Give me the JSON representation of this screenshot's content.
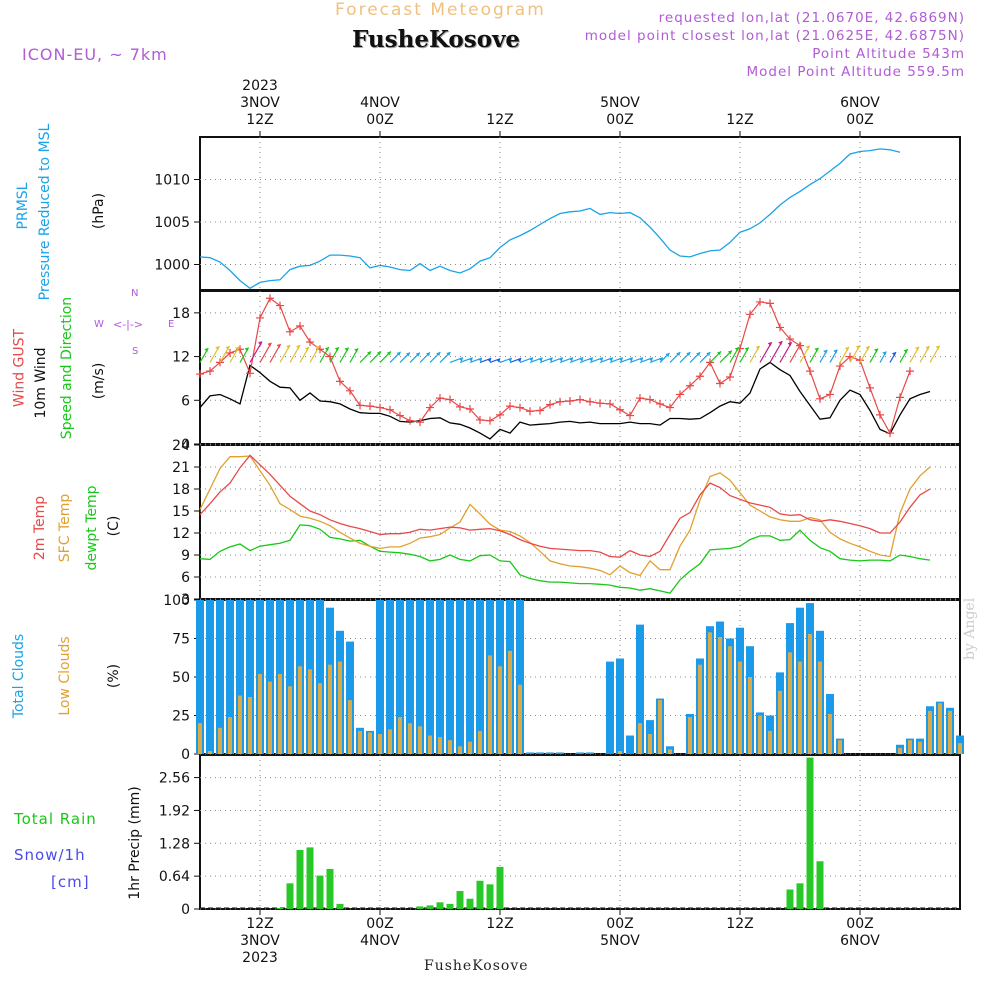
{
  "header": {
    "title": "Forecast Meteogram",
    "location": "FusheKosove",
    "model": "ICON-EU, ~ 7km",
    "requested": "requested lon,lat (21.0670E, 42.6869N)",
    "closest": "model point closest lon,lat (21.0625E, 42.6875N)",
    "point_alt": "Point Altitude 543m",
    "model_alt": "Model Point Altitude 559.5m"
  },
  "time_axis": {
    "top_labels": [
      {
        "line1": "2023",
        "line2": "3NOV",
        "line3": "12Z"
      },
      {
        "line1": "",
        "line2": "4NOV",
        "line3": "00Z"
      },
      {
        "line1": "",
        "line2": "",
        "line3": "12Z"
      },
      {
        "line1": "",
        "line2": "5NOV",
        "line3": "00Z"
      },
      {
        "line1": "",
        "line2": "",
        "line3": "12Z"
      },
      {
        "line1": "",
        "line2": "6NOV",
        "line3": "00Z"
      }
    ],
    "bottom_labels": [
      {
        "line1": "12Z",
        "line2": "3NOV",
        "line3": "2023"
      },
      {
        "line1": "00Z",
        "line2": "4NOV",
        "line3": ""
      },
      {
        "line1": "12Z",
        "line2": "",
        "line3": ""
      },
      {
        "line1": "00Z",
        "line2": "5NOV",
        "line3": ""
      },
      {
        "line1": "12Z",
        "line2": "",
        "line3": ""
      },
      {
        "line1": "00Z",
        "line2": "6NOV",
        "line3": ""
      }
    ]
  },
  "panel_labels": {
    "prmsl": {
      "a": "PRMSL",
      "b": "Pressure Reduced to MSL",
      "unit": "(hPa)"
    },
    "wind": {
      "a": "Wind GUST",
      "b": "10m Wind",
      "c": "Speed and Direction",
      "unit": "(m/s)"
    },
    "compass": {
      "n": "N",
      "s": "S",
      "w": "W",
      "e": "E",
      "h": "<-|->"
    },
    "temp": {
      "a": "2m Temp",
      "b": "SFC Temp",
      "c": "dewpt Temp",
      "unit": "(C)"
    },
    "clouds": {
      "a": "Total Clouds",
      "b": "Low Clouds",
      "unit": "(%)"
    },
    "precip": {
      "a": "Total  Rain",
      "b": "Snow/1h",
      "c": "[cm]",
      "unit": "1hr Precip (mm)"
    }
  },
  "watermark": "by Angel",
  "bottom_location": "FusheKosove",
  "colors": {
    "pressure": "#1aa3e8",
    "gust": "#e84848",
    "wind": "#000000",
    "t2m": "#e84848",
    "tsfc": "#e0a030",
    "dewpt": "#18c818",
    "total_cloud": "#1a9ae8",
    "low_cloud": "#d8aa4a",
    "rain": "#28c828",
    "purple": "#b15bd6",
    "green_label": "#18c818",
    "blue_label": "#1aa3e8"
  },
  "chart_data": [
    {
      "type": "line",
      "name": "PRMSL",
      "x_hours_start": 6,
      "x_step_hours": 1,
      "xlim": [
        6,
        82
      ],
      "ylim": [
        997,
        1015
      ],
      "yticks": [
        1000,
        1005,
        1010
      ],
      "values": [
        1000.9,
        1000.8,
        1000.3,
        999.3,
        998.1,
        997.2,
        997.9,
        998.1,
        998.2,
        999.4,
        999.8,
        999.9,
        1000.4,
        1001.1,
        1001.1,
        1001.0,
        1000.8,
        999.6,
        999.9,
        999.7,
        999.4,
        999.3,
        1000.1,
        999.3,
        999.8,
        999.3,
        999.0,
        999.5,
        1000.4,
        1000.8,
        1002.0,
        1002.9,
        1003.4,
        1004.0,
        1004.7,
        1005.4,
        1006.0,
        1006.2,
        1006.3,
        1006.6,
        1005.9,
        1006.1,
        1006.0,
        1006.1,
        1005.5,
        1004.4,
        1003.1,
        1001.7,
        1001.0,
        1000.9,
        1001.3,
        1001.6,
        1001.7,
        1002.6,
        1003.8,
        1004.2,
        1004.9,
        1005.9,
        1007.0,
        1007.9,
        1008.6,
        1009.4,
        1010.1,
        1011.0,
        1011.9,
        1013.0,
        1013.3,
        1013.4,
        1013.6,
        1013.5,
        1013.2
      ]
    },
    {
      "type": "line",
      "name": "Wind speed and gust",
      "x_hours_start": 6,
      "x_step_hours": 1,
      "xlim": [
        6,
        82
      ],
      "ylim": [
        0,
        21
      ],
      "yticks": [
        0,
        6,
        12,
        18
      ],
      "series": [
        {
          "name": "10m Wind",
          "values": [
            5,
            6.6,
            6.8,
            6.2,
            5.5,
            10.8,
            9.8,
            8.6,
            7.8,
            7.7,
            6,
            7,
            5.9,
            5.8,
            5.5,
            4.8,
            4.3,
            4.2,
            4.2,
            3.8,
            3.1,
            3,
            3.2,
            3.5,
            3.6,
            2.9,
            2.7,
            2.2,
            1.5,
            0.7,
            2,
            1.5,
            3,
            2.6,
            2.7,
            2.8,
            3,
            3.1,
            2.9,
            3,
            2.8,
            2.8,
            2.8,
            3,
            2.8,
            2.8,
            2.6,
            3.5,
            3.5,
            3.4,
            3.5,
            4.3,
            5.2,
            5.8,
            5.6,
            7,
            10.3,
            11.2,
            10.2,
            9.4,
            7.2,
            5.3,
            3.4,
            3.6,
            6,
            7.4,
            6.8,
            4.6,
            2,
            1.4,
            4,
            6.2,
            6.8,
            7.2
          ]
        },
        {
          "name": "Wind GUST",
          "values": [
            9.6,
            10,
            11.2,
            12.5,
            13,
            9.7,
            17.3,
            20,
            19,
            15.4,
            16.2,
            14,
            13,
            12,
            8.6,
            7.3,
            5.3,
            5.2,
            5,
            4.7,
            3.9,
            3.2,
            3,
            5,
            6.3,
            6.1,
            5.1,
            4.8,
            3.3,
            3.2,
            4,
            5.2,
            5,
            4.5,
            4.6,
            5.4,
            5.8,
            5.9,
            6.1,
            5.8,
            5.6,
            5.5,
            4.7,
            3.9,
            6.3,
            6.1,
            5.5,
            5,
            6.8,
            8,
            9.3,
            11.2,
            8.3,
            9.2,
            13.1,
            17.8,
            19.5,
            19.3,
            16,
            14.4,
            13.5,
            10,
            6.2,
            6.8,
            10.7,
            12,
            11.5,
            7.7,
            4,
            1.5,
            6.4,
            10
          ]
        }
      ]
    },
    {
      "type": "line",
      "name": "Temperatures",
      "x_hours_start": 6,
      "x_step_hours": 1,
      "xlim": [
        6,
        82
      ],
      "ylim": [
        3,
        24
      ],
      "yticks": [
        3,
        6,
        9,
        12,
        15,
        18,
        21,
        24
      ],
      "series": [
        {
          "name": "2m Temp",
          "values": [
            14.5,
            16,
            17.6,
            18.8,
            20.9,
            22.6,
            21.3,
            20,
            18.5,
            17,
            16,
            15,
            14.5,
            13.8,
            13.3,
            12.9,
            12.6,
            12.2,
            11.8,
            11.9,
            11.9,
            12.1,
            12.5,
            12.4,
            12.6,
            12.8,
            12.7,
            12.4,
            12.5,
            12.6,
            12.3,
            11.8,
            11.1,
            10.6,
            10.2,
            9.9,
            9.8,
            9.7,
            9.6,
            9.6,
            9.4,
            8.8,
            8.7,
            9.6,
            9,
            8.8,
            9.5,
            11.8,
            14,
            14.8,
            17.2,
            18.8,
            18.2,
            17.1,
            16.6,
            16.1,
            15.8,
            15.5,
            14.6,
            14.4,
            14.5,
            13.8,
            13.6,
            13.8,
            13.6,
            13.3,
            13,
            12.6,
            12,
            12,
            13.5,
            15.5,
            17.2,
            18
          ]
        },
        {
          "name": "SFC Temp",
          "values": [
            15.2,
            18,
            20.8,
            22.4,
            22.4,
            22.5,
            20.5,
            18.5,
            16,
            15.2,
            14.3,
            14,
            13.6,
            13,
            12.1,
            11.3,
            10.6,
            10.2,
            9.9,
            10.1,
            10.1,
            10.6,
            11.3,
            11.5,
            11.8,
            12.7,
            13.5,
            15.9,
            14.6,
            13.2,
            12.4,
            12.2,
            11.6,
            10.7,
            9.5,
            8.2,
            7.8,
            7.5,
            7.4,
            7.2,
            6.9,
            6.3,
            7.5,
            6.6,
            6.2,
            8.2,
            7,
            7,
            10.2,
            12.4,
            16.5,
            19.7,
            20.2,
            19.2,
            17.5,
            15.8,
            15,
            14.2,
            13.8,
            13.6,
            13.6,
            14.1,
            13.8,
            12.1,
            11.2,
            10.6,
            10.1,
            9.5,
            9,
            8.8,
            14.7,
            18,
            19.8,
            21
          ]
        },
        {
          "name": "dewpt Temp",
          "values": [
            8.5,
            8.4,
            9.5,
            10.1,
            10.5,
            9.6,
            10.2,
            10.4,
            10.6,
            11,
            13.1,
            13,
            12.5,
            11.4,
            11.2,
            10.9,
            11,
            10.2,
            9.5,
            9.4,
            9.3,
            9.1,
            8.8,
            8.2,
            8.4,
            9,
            8.4,
            8.2,
            8.9,
            9,
            8.2,
            8.1,
            6.3,
            5.8,
            5.5,
            5.3,
            5.3,
            5.2,
            5.1,
            5.1,
            5,
            4.9,
            4.6,
            4.5,
            4.2,
            4.4,
            4.1,
            3.8,
            5.6,
            6.8,
            7.8,
            9.7,
            9.8,
            9.9,
            10.2,
            11.1,
            11.6,
            11.6,
            11,
            11.1,
            12.4,
            11,
            10,
            9.5,
            8.5,
            8.3,
            8.2,
            8.3,
            8.3,
            8.2,
            9,
            8.8,
            8.5,
            8.3
          ]
        }
      ]
    },
    {
      "type": "bar",
      "name": "Clouds (%)",
      "x_hours_start": 6,
      "x_step_hours": 1,
      "xlim": [
        6,
        82
      ],
      "ylim": [
        0,
        100
      ],
      "yticks": [
        0,
        25,
        50,
        75,
        100
      ],
      "series": [
        {
          "name": "Total Clouds",
          "values": [
            100,
            100,
            100,
            100,
            100,
            100,
            100,
            100,
            100,
            100,
            100,
            100,
            100,
            95,
            80,
            73,
            17,
            15,
            100,
            100,
            100,
            100,
            100,
            100,
            100,
            100,
            100,
            100,
            100,
            100,
            100,
            100,
            100,
            1,
            1,
            1,
            1,
            0,
            1,
            1,
            0,
            60,
            62,
            12,
            84,
            22,
            36,
            5,
            0,
            26,
            62,
            83,
            86,
            75,
            82,
            70,
            27,
            25,
            53,
            85,
            95,
            98,
            80,
            39,
            10,
            0,
            0,
            0,
            0,
            0,
            6,
            10,
            10,
            31,
            34,
            30,
            12
          ]
        },
        {
          "name": "Low Clouds",
          "values": [
            20,
            2,
            17,
            24,
            38,
            37,
            52,
            47,
            52,
            44,
            57,
            55,
            46,
            58,
            60,
            35,
            15,
            14,
            13,
            16,
            24,
            20,
            18,
            12,
            11,
            9,
            5,
            8,
            15,
            64,
            57,
            67,
            45,
            0,
            0,
            0,
            0,
            0,
            0,
            0,
            0,
            0,
            2,
            0,
            20,
            13,
            35,
            3,
            0,
            24,
            58,
            79,
            76,
            70,
            60,
            50,
            25,
            15,
            41,
            66,
            60,
            78,
            60,
            26,
            9,
            0,
            0,
            0,
            0,
            0,
            4,
            9,
            8,
            28,
            33,
            28,
            7
          ]
        }
      ]
    },
    {
      "type": "bar",
      "name": "1hr Precip (mm)",
      "x_hours_start": 6,
      "x_step_hours": 1,
      "xlim": [
        6,
        82
      ],
      "ylim": [
        0,
        3
      ],
      "yticks": [
        "0",
        "0.64",
        "1.28",
        "1.92",
        "2.56"
      ],
      "series": [
        {
          "name": "Total Rain",
          "values": [
            0,
            0,
            0,
            0,
            0,
            0,
            0,
            0,
            0.02,
            0.5,
            1.15,
            1.2,
            0.65,
            0.78,
            0.1,
            0,
            0,
            0,
            0,
            0,
            0,
            0,
            0.05,
            0.07,
            0.13,
            0.1,
            0.35,
            0.2,
            0.55,
            0.48,
            0.82,
            0,
            0,
            0,
            0,
            0,
            0,
            0,
            0,
            0,
            0,
            0,
            0,
            0,
            0,
            0,
            0,
            0,
            0,
            0,
            0,
            0,
            0,
            0,
            0,
            0,
            0,
            0,
            0,
            0.38,
            0.5,
            2.95,
            0.93,
            0,
            0,
            0,
            0,
            0,
            0,
            0,
            0,
            0,
            0,
            0,
            0,
            0,
            0
          ]
        }
      ]
    }
  ]
}
